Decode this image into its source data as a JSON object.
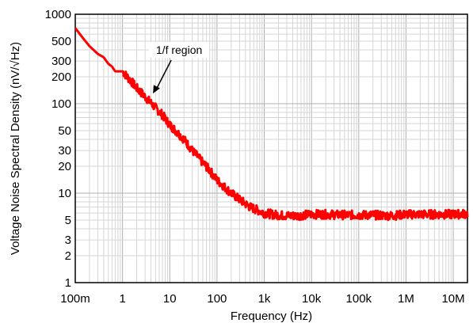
{
  "chart_data": {
    "type": "line",
    "title": "",
    "xlabel": "Frequency (Hz)",
    "ylabel": "Voltage Noise Spectral Density (nV/√Hz)",
    "xscale": "log",
    "yscale": "log",
    "xlim": [
      0.1,
      20000000
    ],
    "ylim": [
      1,
      1000
    ],
    "grid": true,
    "x_ticks": [
      {
        "value": 0.1,
        "label": "100m"
      },
      {
        "value": 1,
        "label": "1"
      },
      {
        "value": 10,
        "label": "10"
      },
      {
        "value": 100,
        "label": "100"
      },
      {
        "value": 1000,
        "label": "1k"
      },
      {
        "value": 10000,
        "label": "10k"
      },
      {
        "value": 100000,
        "label": "100k"
      },
      {
        "value": 1000000,
        "label": "1M"
      },
      {
        "value": 10000000,
        "label": "10M"
      }
    ],
    "y_ticks": [
      {
        "value": 1,
        "label": "1"
      },
      {
        "value": 2,
        "label": "2"
      },
      {
        "value": 3,
        "label": "3"
      },
      {
        "value": 5,
        "label": "5"
      },
      {
        "value": 10,
        "label": "10"
      },
      {
        "value": 20,
        "label": "20"
      },
      {
        "value": 30,
        "label": "30"
      },
      {
        "value": 50,
        "label": "50"
      },
      {
        "value": 100,
        "label": "100"
      },
      {
        "value": 200,
        "label": "200"
      },
      {
        "value": 300,
        "label": "300"
      },
      {
        "value": 500,
        "label": "500"
      },
      {
        "value": 1000,
        "label": "1000"
      }
    ],
    "series": [
      {
        "color": "#ff0000",
        "x": [
          0.1,
          0.15,
          0.2,
          0.3,
          0.4,
          0.5,
          0.6,
          0.7,
          1,
          1.5,
          2,
          3,
          5,
          7,
          10,
          15,
          20,
          30,
          50,
          70,
          100,
          150,
          200,
          300,
          500,
          700,
          1000,
          1500,
          2000,
          3000,
          5000,
          7000,
          10000,
          20000,
          50000,
          100000,
          200000,
          500000,
          1000000,
          2000000,
          5000000,
          10000000,
          20000000
        ],
        "y": [
          700,
          530,
          440,
          360,
          330,
          280,
          260,
          230,
          230,
          180,
          150,
          120,
          90,
          75,
          58,
          47,
          40,
          30,
          22,
          18,
          14,
          11.5,
          10,
          8.5,
          7,
          6.5,
          6,
          5.8,
          5.7,
          5.6,
          5.6,
          5.7,
          5.8,
          5.8,
          5.7,
          5.7,
          5.7,
          5.6,
          5.8,
          5.8,
          5.8,
          5.8,
          5.9
        ]
      }
    ],
    "annotations": [
      {
        "text": "1/f region",
        "x": 3,
        "y": 130
      }
    ]
  }
}
